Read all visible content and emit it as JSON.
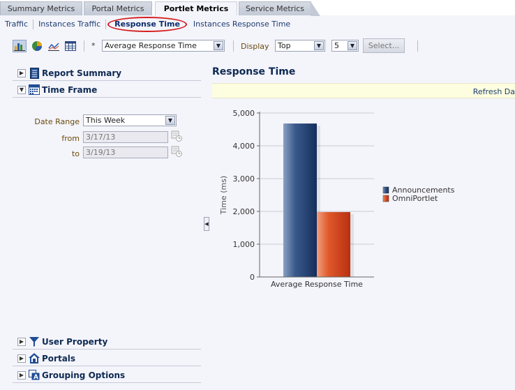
{
  "top_tabs": [
    {
      "label": "Summary Metrics",
      "active": false
    },
    {
      "label": "Portal Metrics",
      "active": false
    },
    {
      "label": "Portlet Metrics",
      "active": true
    },
    {
      "label": "Service Metrics",
      "active": false
    }
  ],
  "subnav": [
    {
      "label": "Traffic",
      "active": false
    },
    {
      "label": "Instances Traffic",
      "active": false
    },
    {
      "label": "Response Time",
      "active": true
    },
    {
      "label": "Instances Response Time",
      "active": false
    }
  ],
  "toolbar": {
    "required_marker": "*",
    "metric_select": "Average Response Time",
    "display_label": "Display",
    "display_select": "Top",
    "count_select": "5",
    "select_button": "Select..."
  },
  "left_panel": {
    "sections": {
      "report_summary": "Report Summary",
      "time_frame": "Time Frame",
      "user_property": "User Property",
      "portals": "Portals",
      "grouping_options": "Grouping Options"
    },
    "date_range_label": "Date Range",
    "date_range_value": "This Week",
    "from_label": "from",
    "from_value": "3/17/13",
    "to_label": "to",
    "to_value": "3/19/13"
  },
  "right_panel": {
    "title": "Response Time",
    "refresh_text": "Refresh Da"
  },
  "colors": {
    "accent": "#0e2a52",
    "series_announcements": "#1f3d6b",
    "series_omniportlet": "#d9441c"
  },
  "chart_data": {
    "type": "bar",
    "categories": [
      "Average Response Time"
    ],
    "series": [
      {
        "name": "Announcements",
        "values": [
          4680
        ],
        "color": "#1f3d6b"
      },
      {
        "name": "OmniPortlet",
        "values": [
          1980
        ],
        "color": "#d9441c"
      }
    ],
    "title": "",
    "xlabel": "",
    "ylabel": "Time (ms)",
    "ylim": [
      0,
      5000
    ],
    "yticks": [
      0,
      1000,
      2000,
      3000,
      4000,
      5000
    ],
    "ytick_labels": [
      "0",
      "1,000",
      "2,000",
      "3,000",
      "4,000",
      "5,000"
    ],
    "grid": true,
    "legend": "right"
  }
}
